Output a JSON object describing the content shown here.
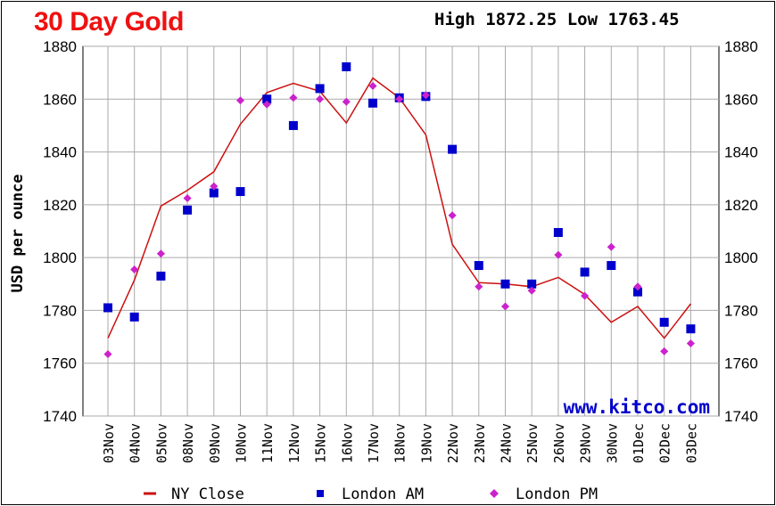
{
  "chart_data": {
    "type": "line",
    "title": "30 Day Gold",
    "high_low_label": "High 1872.25 Low 1763.45",
    "ylabel": "USD per ounce",
    "watermark": "www.kitco.com",
    "ylim": [
      1740,
      1880
    ],
    "yticks": [
      1740,
      1760,
      1780,
      1800,
      1820,
      1840,
      1860,
      1880
    ],
    "grid": true,
    "legend_position": "bottom",
    "categories": [
      "03Nov",
      "04Nov",
      "05Nov",
      "08Nov",
      "09Nov",
      "10Nov",
      "11Nov",
      "12Nov",
      "15Nov",
      "16Nov",
      "17Nov",
      "18Nov",
      "19Nov",
      "22Nov",
      "23Nov",
      "24Nov",
      "25Nov",
      "26Nov",
      "29Nov",
      "30Nov",
      "01Dec",
      "02Dec",
      "03Dec"
    ],
    "series": [
      {
        "name": "NY Close",
        "type": "line",
        "color": "#cc1111",
        "values": [
          1769.5,
          1791.5,
          1819.5,
          1825.5,
          1832.5,
          1850.5,
          1862.5,
          1866.0,
          1863.0,
          1851.0,
          1868.0,
          1860.5,
          1846.5,
          1805.0,
          1790.5,
          1790.0,
          1789.0,
          1792.5,
          1786.0,
          1775.5,
          1781.5,
          1769.5,
          1782.5
        ]
      },
      {
        "name": "London AM",
        "type": "square",
        "color": "#0000cc",
        "values": [
          1781.0,
          1777.5,
          1793.0,
          1818.0,
          1824.5,
          1825.0,
          1860.0,
          1850.0,
          1864.0,
          1872.25,
          1858.5,
          1860.5,
          1861.0,
          1841.0,
          1797.0,
          1790.0,
          1790.0,
          1809.5,
          1794.5,
          1797.0,
          1787.0,
          1775.5,
          1773.0
        ]
      },
      {
        "name": "London PM",
        "type": "diamond",
        "color": "#cc22cc",
        "values": [
          1763.45,
          1795.5,
          1801.5,
          1822.5,
          1827.0,
          1859.5,
          1858.0,
          1860.5,
          1860.0,
          1859.0,
          1865.0,
          1860.0,
          1861.5,
          1816.0,
          1789.0,
          1781.5,
          1787.5,
          1801.0,
          1785.5,
          1804.0,
          1789.0,
          1764.5,
          1767.5
        ]
      }
    ]
  }
}
